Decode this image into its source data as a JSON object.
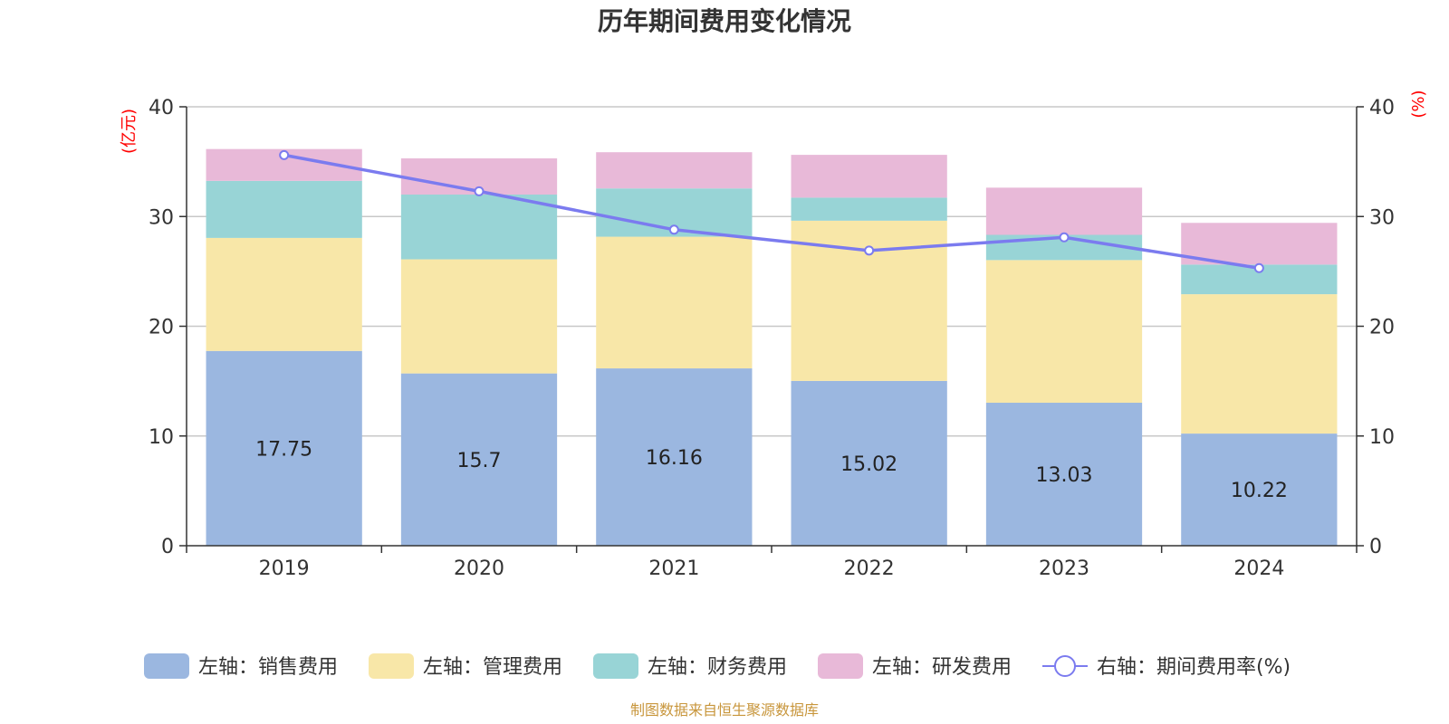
{
  "chart_data": {
    "type": "bar",
    "title": "历年期间费用变化情况",
    "categories": [
      "2019",
      "2020",
      "2021",
      "2022",
      "2023",
      "2024"
    ],
    "left_axis": {
      "unit": "(亿元)",
      "ylim": [
        0,
        40
      ],
      "ticks": [
        "0",
        "10",
        "20",
        "30",
        "40"
      ]
    },
    "right_axis": {
      "unit": "(%)",
      "ylim": [
        0,
        40
      ],
      "ticks": [
        "0",
        "10",
        "20",
        "30",
        "40"
      ]
    },
    "series": [
      {
        "name": "左轴：销售费用",
        "type": "bar",
        "axis": "left",
        "color": "#9bb7e0",
        "values": [
          17.75,
          15.7,
          16.16,
          15.02,
          13.03,
          10.22
        ],
        "labels": [
          "17.75",
          "15.7",
          "16.16",
          "15.02",
          "13.03",
          "10.22"
        ]
      },
      {
        "name": "左轴：管理费用",
        "type": "bar",
        "axis": "left",
        "color": "#f8e7a8",
        "values": [
          10.3,
          10.4,
          12.0,
          14.6,
          13.0,
          12.7
        ]
      },
      {
        "name": "左轴：财务费用",
        "type": "bar",
        "axis": "left",
        "color": "#98d4d6",
        "values": [
          5.2,
          5.9,
          4.4,
          2.1,
          2.3,
          2.7
        ]
      },
      {
        "name": "左轴：研发费用",
        "type": "bar",
        "axis": "left",
        "color": "#e8b9d8",
        "values": [
          2.9,
          3.3,
          3.3,
          3.9,
          4.3,
          3.8
        ]
      },
      {
        "name": "右轴：期间费用率(%)",
        "type": "line",
        "axis": "right",
        "color": "#7b7bef",
        "values": [
          35.6,
          32.3,
          28.8,
          26.9,
          28.1,
          25.3
        ]
      }
    ],
    "grid": true,
    "legend_position": "bottom"
  },
  "source": "制图数据来自恒生聚源数据库"
}
